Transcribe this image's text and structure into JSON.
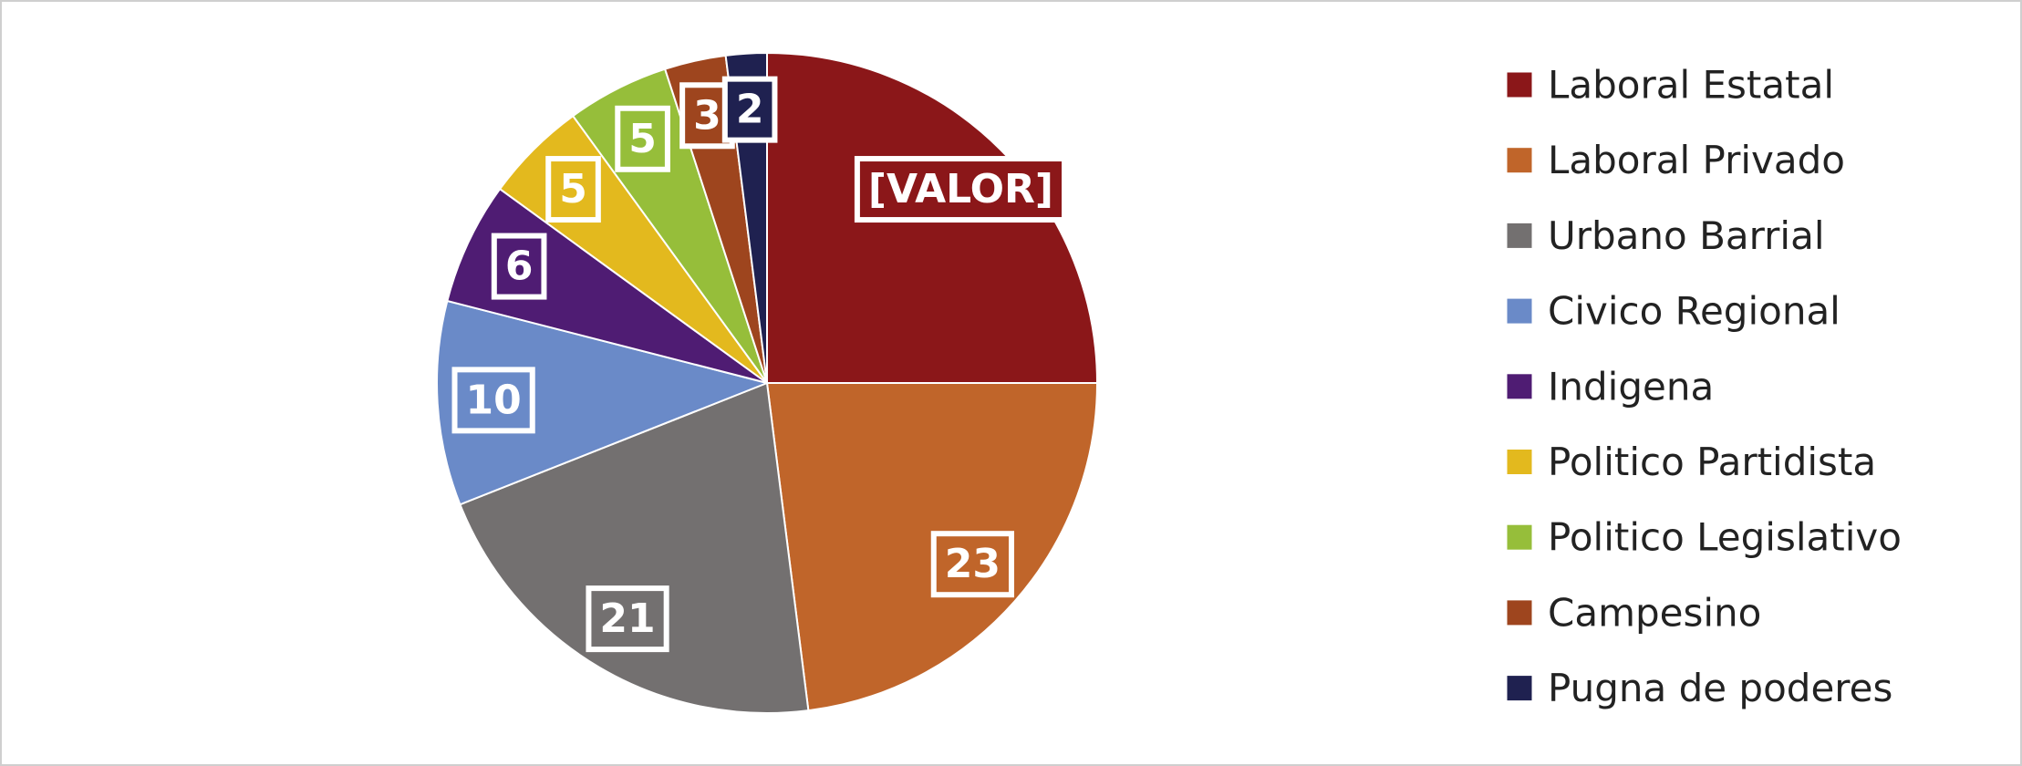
{
  "chart_data": {
    "type": "pie",
    "categories": [
      "Laboral Estatal",
      "Laboral Privado",
      "Urbano Barrial",
      "Civico Regional",
      "Indigena",
      "Politico Partidista",
      "Politico Legislativo",
      "Campesino",
      "Pugna de poderes"
    ],
    "values": [
      25,
      23,
      21,
      10,
      6,
      5,
      5,
      3,
      2
    ],
    "value_labels": [
      "[VALOR]",
      null,
      null,
      null,
      null,
      null,
      null,
      null,
      null
    ],
    "colors": [
      "#8b1719",
      "#c0652a",
      "#737070",
      "#6a8ac8",
      "#4f1c73",
      "#e3b91e",
      "#96be3a",
      "#9e451e",
      "#1f2150"
    ],
    "legend": "right"
  }
}
